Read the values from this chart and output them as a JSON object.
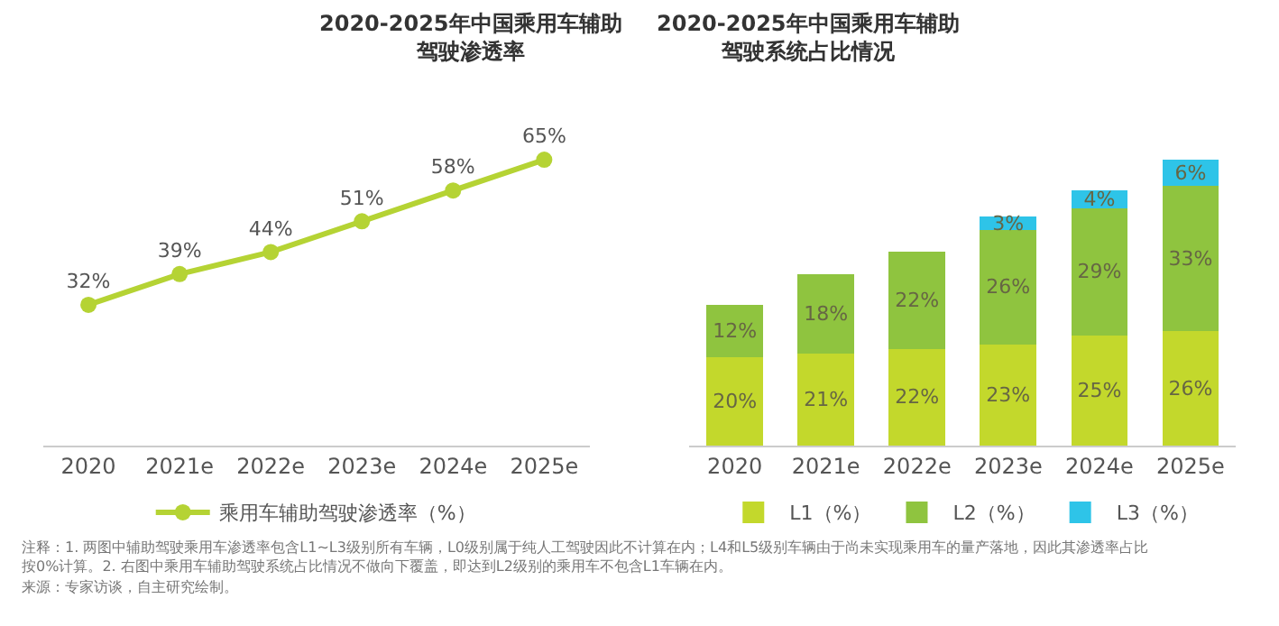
{
  "chart_data": [
    {
      "type": "line",
      "title": "2020-2025年中国乘用车辅助驾驶渗透率",
      "categories": [
        "2020",
        "2021e",
        "2022e",
        "2023e",
        "2024e",
        "2025e"
      ],
      "series": [
        {
          "name": "乘用车辅助驾驶渗透率（%）",
          "color": "#b5d334",
          "values": [
            32,
            39,
            44,
            51,
            58,
            65
          ],
          "value_labels": [
            "32%",
            "39%",
            "44%",
            "51%",
            "58%",
            "65%"
          ]
        }
      ],
      "marker": "circle",
      "line_style": "solid",
      "legend": "bottom",
      "grid": false,
      "annotations": [
        "注释：1. 两图中辅助驾驶乘用车渗透率包含L1~L3级别所有车辆，L0级别属于纯人工驾驶因此不计算在内；L4和L5级别车辆由于尚未实现乘用车的量产落地，因此其渗透率占比按0%计算。2. 右图中乘用车辅助驾驶系统占比情况不做向下覆盖，即达到L2级别的乘用车不包含L1车辆在内。",
        "来源：专家访谈，自主研究绘制。"
      ]
    },
    {
      "type": "bar",
      "stacked": true,
      "title": "2020-2025年中国乘用车辅助驾驶系统占比情况",
      "categories": [
        "2020",
        "2021e",
        "2022e",
        "2023e",
        "2024e",
        "2025e"
      ],
      "series": [
        {
          "name": "L1（%）",
          "color": "#c3d82c",
          "values": [
            20,
            21,
            22,
            23,
            25,
            26
          ],
          "value_labels": [
            "20%",
            "21%",
            "22%",
            "23%",
            "25%",
            "26%"
          ]
        },
        {
          "name": "L2（%）",
          "color": "#8fc43f",
          "values": [
            12,
            18,
            22,
            26,
            29,
            33
          ],
          "value_labels": [
            "12%",
            "18%",
            "22%",
            "26%",
            "29%",
            "33%"
          ]
        },
        {
          "name": "L3（%）",
          "color": "#2ec4e8",
          "values": [
            null,
            null,
            null,
            3,
            4,
            6
          ],
          "value_labels": [
            null,
            null,
            null,
            "3%",
            "4%",
            "6%"
          ]
        }
      ],
      "legend": "bottom",
      "grid": false
    }
  ]
}
